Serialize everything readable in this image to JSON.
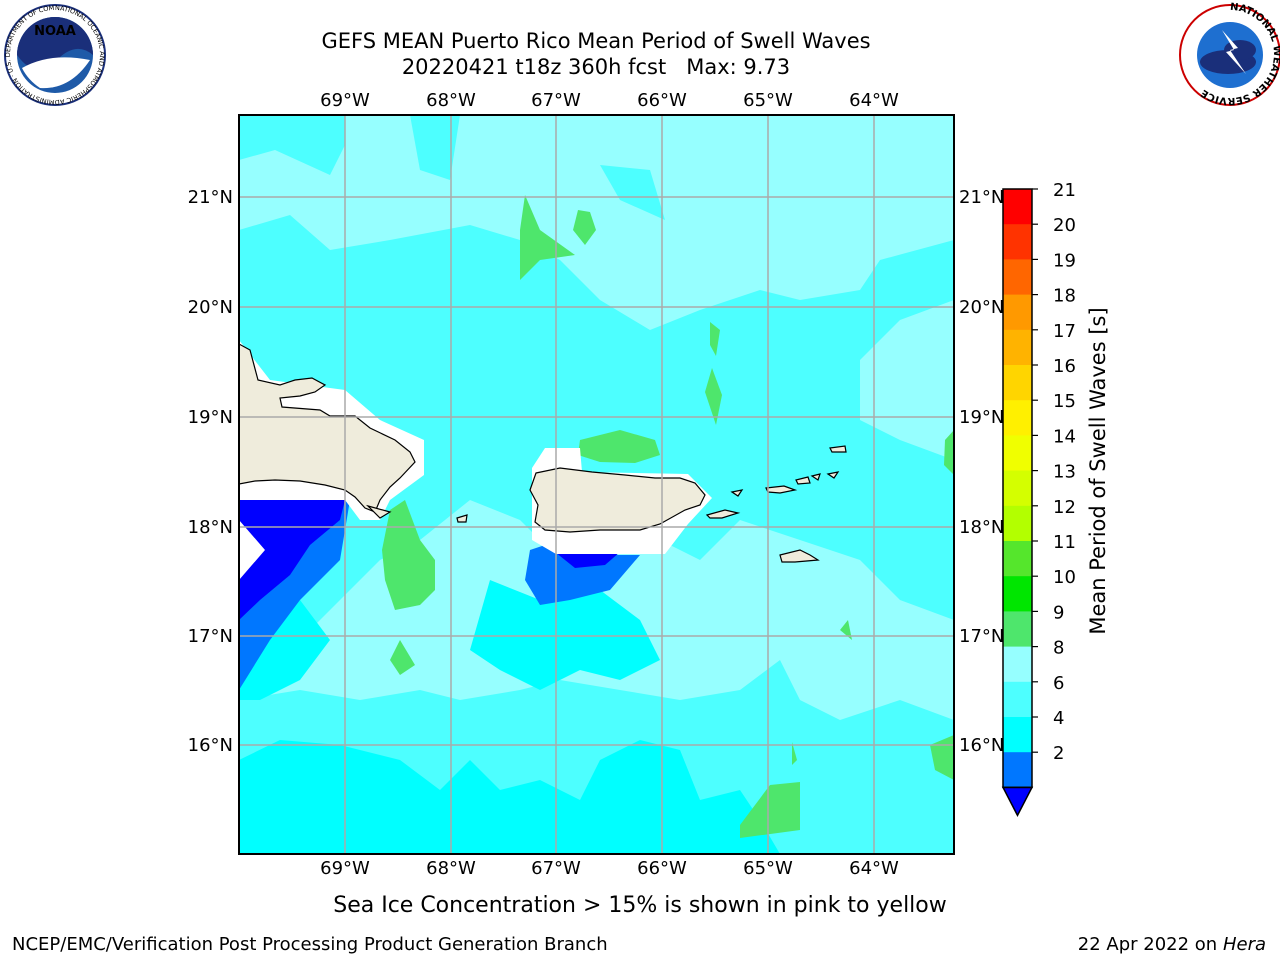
{
  "header": {
    "title_line1": "GEFS MEAN Puerto Rico Mean Period of Swell Waves",
    "title_line2": "20220421 t18z 360h fcst   Max: 9.73"
  },
  "logos": {
    "noaa_text": "NOAA",
    "noaa_ring": "NATIONAL OCEANIC AND ATMOSPHERIC ADMINISTRATION · U.S. DEPARTMENT OF COMMERCE",
    "nws_ring": "NATIONAL WEATHER SERVICE"
  },
  "map": {
    "lon_labels": [
      "69°W",
      "68°W",
      "67°W",
      "66°W",
      "65°W",
      "64°W"
    ],
    "lat_labels": [
      "21°N",
      "20°N",
      "19°N",
      "18°N",
      "17°N",
      "16°N"
    ],
    "colors": {
      "background": "#96ffff",
      "land": "#efecdc",
      "grid": "#aaaaaa"
    }
  },
  "colorbar": {
    "label": "Mean Period of Swell Waves [s]",
    "ticks": [
      "21",
      "20",
      "19",
      "18",
      "17",
      "16",
      "15",
      "14",
      "13",
      "12",
      "11",
      "10",
      "9",
      "8",
      "6",
      "4",
      "2"
    ],
    "colors": [
      "#ff0000",
      "#ff3300",
      "#ff6600",
      "#ff9900",
      "#ffb300",
      "#ffd500",
      "#fff000",
      "#f0ff00",
      "#d4ff00",
      "#b3ff00",
      "#55e62c",
      "#00e600",
      "#4ee66c",
      "#96ffff",
      "#4dffff",
      "#00ffff",
      "#0077ff"
    ],
    "under_color": "#0000ff"
  },
  "footer": {
    "note": "Sea Ice Concentration > 15% is shown in pink to yellow",
    "left": "NCEP/EMC/Verification Post Processing Product Generation Branch",
    "right_date": "22 Apr 2022 on ",
    "right_host": "Hera"
  }
}
